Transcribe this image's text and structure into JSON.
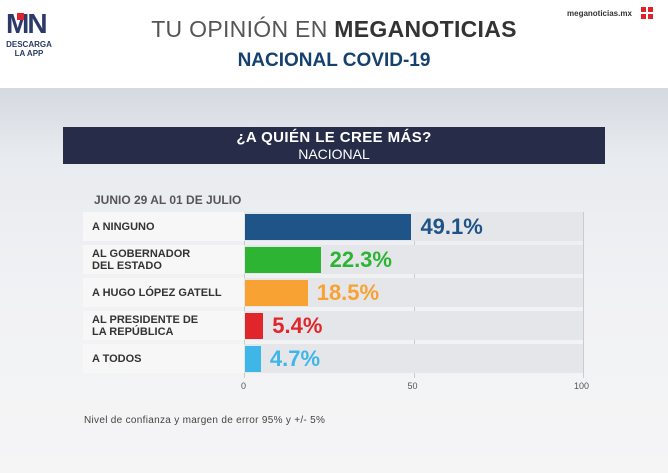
{
  "header": {
    "logo_text": "MN",
    "logo_sub": "DESCARGA LA APP",
    "site": "meganoticias.mx",
    "title_light": "TU OPINIÓN EN ",
    "title_bold": "MEGANOTICIAS",
    "subtitle": "NACIONAL COVID-19"
  },
  "question": {
    "text": "¿A QUIÉN LE CREE MÁS?",
    "scope": "NACIONAL"
  },
  "period": "JUNIO 29 AL 01 DE JULIO",
  "footnote": "Nivel de confianza y margen de error 95% y +/- 5%",
  "colors": {
    "ninguno": "#1f5488",
    "gobernador": "#2db433",
    "gatell": "#f7a233",
    "presidente": "#e0262a",
    "todos": "#3fb6e8"
  },
  "chart_data": {
    "type": "bar",
    "orientation": "horizontal",
    "categories": [
      "A NINGUNO",
      "AL GOBERNADOR DEL ESTADO",
      "A HUGO LÓPEZ GATELL",
      "AL PRESIDENTE DE LA REPÚBLICA",
      "A TODOS"
    ],
    "values": [
      49.1,
      22.3,
      18.5,
      5.4,
      4.7
    ],
    "value_labels": [
      "49.1%",
      "22.3%",
      "18.5%",
      "5.4%",
      "4.7%"
    ],
    "xlim": [
      0,
      100
    ],
    "xticks": [
      "0",
      "50",
      "100"
    ],
    "title": "¿A QUIÉN LE CREE MÁS?",
    "xlabel": "",
    "ylabel": ""
  }
}
